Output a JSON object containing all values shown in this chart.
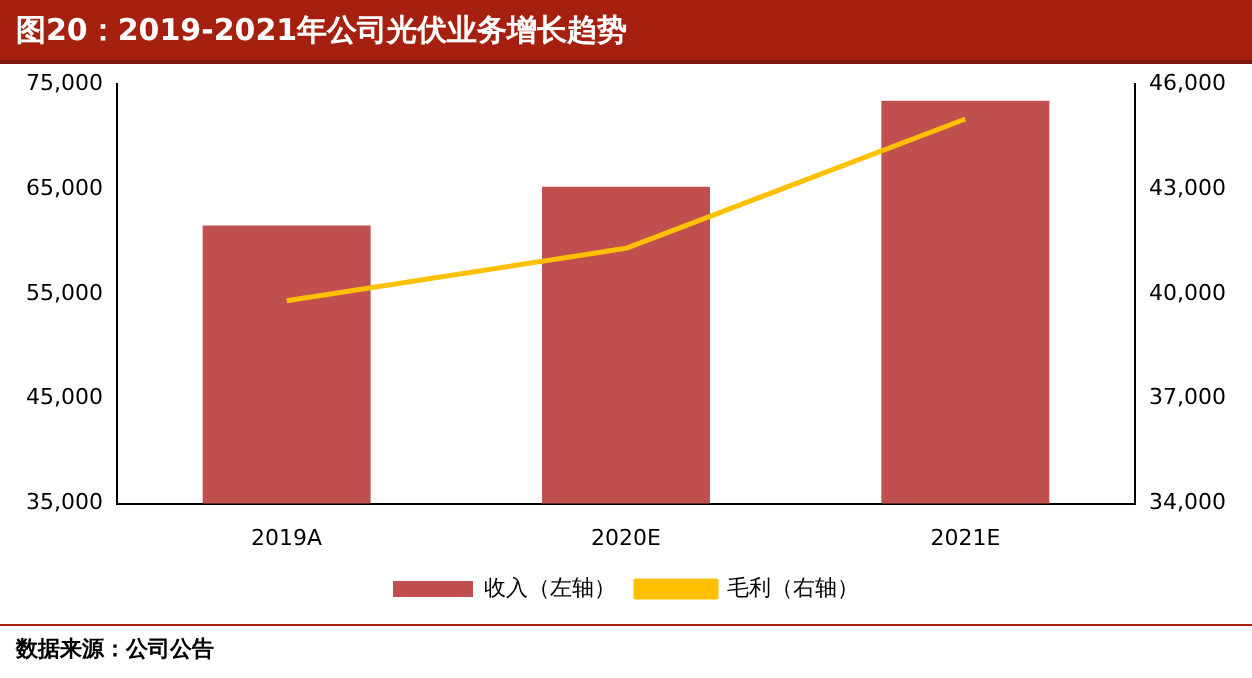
{
  "chart_data": {
    "type": "bar",
    "title": "图20：2019-2021年公司光伏业务增长趋势",
    "categories": [
      "2019A",
      "2020E",
      "2021E"
    ],
    "series": [
      {
        "name": "收入（左轴）",
        "color": "#c0504d",
        "values": [
          61500,
          65200,
          73400
        ]
      },
      {
        "name": "毛利（右轴）",
        "type": "line",
        "axis": "y2",
        "color": "#ffc000",
        "values": [
          39800,
          41300,
          45000
        ]
      }
    ],
    "ylim": [
      35000,
      75000
    ],
    "yticks": [
      {
        "value": 35000,
        "label": "35,000"
      },
      {
        "value": 45000,
        "label": "45,000"
      },
      {
        "value": 55000,
        "label": "55,000"
      },
      {
        "value": 65000,
        "label": "65,000"
      },
      {
        "value": 75000,
        "label": "75,000"
      }
    ],
    "y2lim": [
      34000,
      46000
    ],
    "y2ticks": [
      {
        "value": 34000,
        "label": "34,000"
      },
      {
        "value": 37000,
        "label": "37,000"
      },
      {
        "value": 40000,
        "label": "40,000"
      },
      {
        "value": 43000,
        "label": "43,000"
      },
      {
        "value": 46000,
        "label": "46,000"
      }
    ],
    "legend": "bottom",
    "grid": false,
    "annotations": [
      "数据来源：公司公告"
    ]
  }
}
